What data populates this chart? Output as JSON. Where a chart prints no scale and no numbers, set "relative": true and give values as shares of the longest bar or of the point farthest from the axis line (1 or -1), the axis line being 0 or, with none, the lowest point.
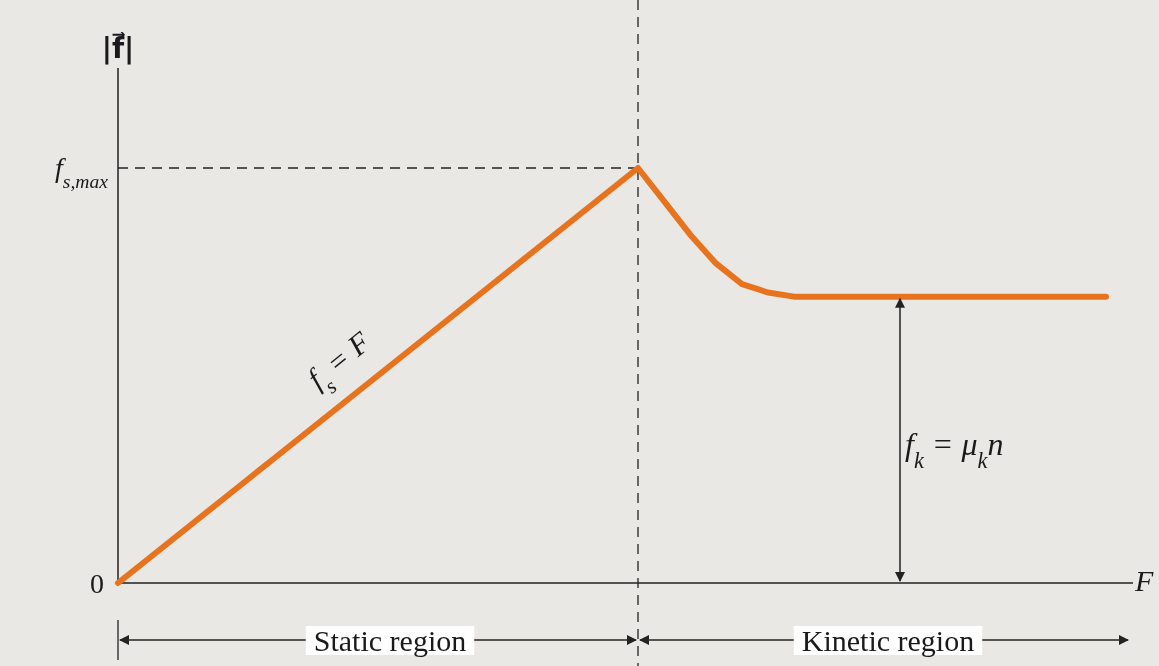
{
  "chart_data": {
    "type": "line",
    "relative": true,
    "xlabel": "F",
    "ylabel": "|f⃗|",
    "categories": [
      null,
      null,
      null,
      null,
      null,
      null,
      null,
      null,
      null,
      null,
      null,
      null,
      null,
      null,
      null,
      null,
      null,
      null,
      null,
      null,
      null,
      null,
      null,
      null,
      null,
      null,
      null,
      null,
      null,
      null,
      null,
      null,
      null,
      null,
      null,
      null,
      null,
      null,
      null
    ],
    "series": [
      {
        "color": "#e8731f",
        "values": [
          0,
          0.05,
          0.1,
          0.15,
          0.2,
          0.25,
          0.3,
          0.35,
          0.4,
          0.45,
          0.5,
          0.55,
          0.6,
          0.65,
          0.7,
          0.75,
          0.8,
          0.85,
          0.9,
          0.95,
          1,
          0.92,
          0.84,
          0.77,
          0.72,
          0.7,
          0.69,
          0.69,
          0.69,
          0.69,
          0.69,
          0.69,
          0.69,
          0.69,
          0.69,
          0.69,
          0.69,
          0.69,
          0.69
        ]
      }
    ],
    "ref_lines": [
      {
        "axis": "y",
        "value": 1,
        "label": "f$_{s,max}$",
        "line_style": "dashed"
      }
    ],
    "annotations": [
      "f$_{s}$ = F",
      "f$_{k}$ = μ$_{k}$n",
      "Static region",
      "Kinetic region",
      "0"
    ]
  }
}
